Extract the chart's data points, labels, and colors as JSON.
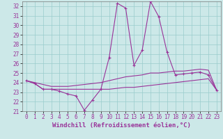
{
  "xlabel": "Windchill (Refroidissement éolien,°C)",
  "background_color": "#cce8e8",
  "line_color": "#993399",
  "grid_color": "#99cccc",
  "xlim": [
    -0.5,
    23.5
  ],
  "ylim": [
    21,
    32.5
  ],
  "yticks": [
    21,
    22,
    23,
    24,
    25,
    26,
    27,
    28,
    29,
    30,
    31,
    32
  ],
  "xticks": [
    0,
    1,
    2,
    3,
    4,
    5,
    6,
    7,
    8,
    9,
    10,
    11,
    12,
    13,
    14,
    15,
    16,
    17,
    18,
    19,
    20,
    21,
    22,
    23
  ],
  "series1_x": [
    0,
    1,
    2,
    3,
    4,
    5,
    6,
    7,
    8,
    9,
    10,
    11,
    12,
    13,
    14,
    15,
    16,
    17,
    18,
    19,
    20,
    21,
    22,
    23
  ],
  "series1_y": [
    24.2,
    23.9,
    23.3,
    23.3,
    23.1,
    22.8,
    22.6,
    21.1,
    22.2,
    23.3,
    26.6,
    32.3,
    31.8,
    25.8,
    27.4,
    32.5,
    30.9,
    27.2,
    24.8,
    24.9,
    25.0,
    25.1,
    24.8,
    23.2
  ],
  "series2_x": [
    0,
    1,
    2,
    3,
    4,
    5,
    6,
    7,
    8,
    9,
    10,
    11,
    12,
    13,
    14,
    15,
    16,
    17,
    18,
    19,
    20,
    21,
    22,
    23
  ],
  "series2_y": [
    24.2,
    23.9,
    23.3,
    23.3,
    23.3,
    23.3,
    23.3,
    23.3,
    23.3,
    23.3,
    23.3,
    23.4,
    23.5,
    23.5,
    23.6,
    23.7,
    23.8,
    23.9,
    24.0,
    24.1,
    24.2,
    24.3,
    24.4,
    23.2
  ],
  "series3_x": [
    0,
    1,
    2,
    3,
    4,
    5,
    6,
    7,
    8,
    9,
    10,
    11,
    12,
    13,
    14,
    15,
    16,
    17,
    18,
    19,
    20,
    21,
    22,
    23
  ],
  "series3_y": [
    24.2,
    24.0,
    23.8,
    23.6,
    23.6,
    23.6,
    23.7,
    23.8,
    23.9,
    24.0,
    24.2,
    24.4,
    24.6,
    24.7,
    24.8,
    25.0,
    25.0,
    25.1,
    25.2,
    25.2,
    25.3,
    25.4,
    25.3,
    23.2
  ],
  "xlabel_fontsize": 6.5,
  "tick_fontsize": 5.5
}
